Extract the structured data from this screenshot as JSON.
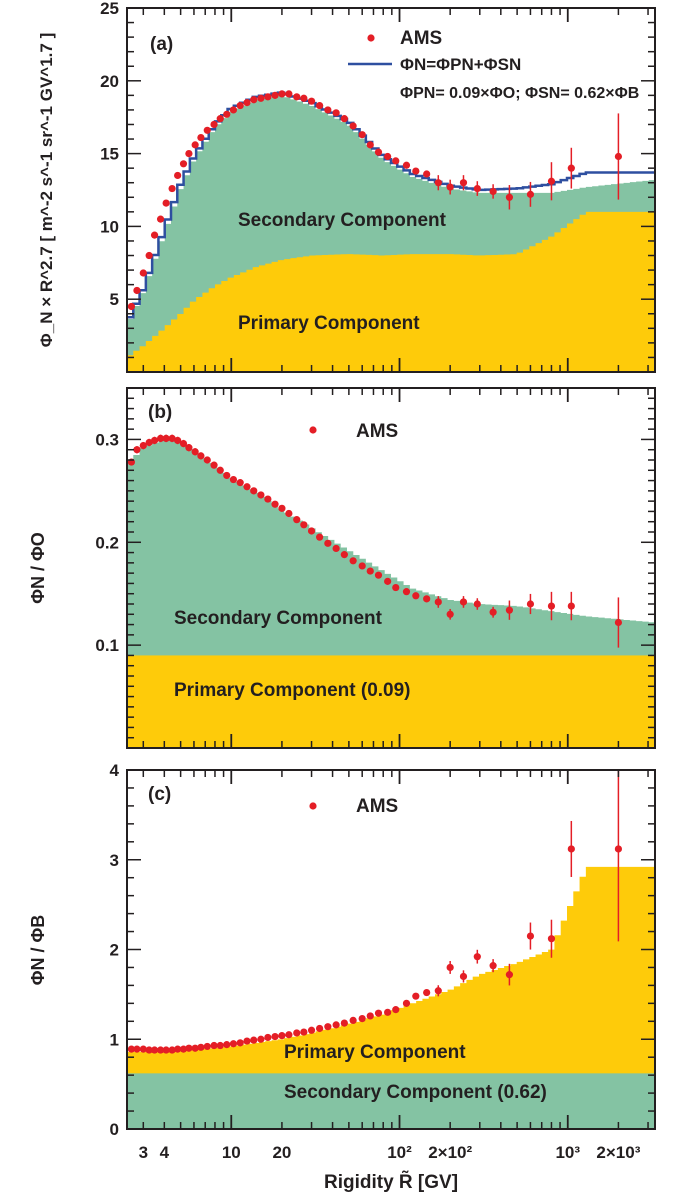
{
  "colors": {
    "secondary_fill": "#84c3a3",
    "primary_fill": "#fecb0a",
    "ams_marker": "#e41e26",
    "model_line": "#2e4fa0",
    "axis": "#231f20"
  },
  "figure": {
    "xlabel": "Rigidity R̃ [GV]",
    "x_range": [
      2.4,
      3300
    ],
    "x_scale": "log"
  },
  "chart_data": [
    {
      "type": "area",
      "panel_label": "(a)",
      "ylabel": "Φ_N × R^2.7 [ m^-2 s^-1 sr^-1 GV^1.7 ]",
      "ylim": [
        0,
        25
      ],
      "y_ticks": [
        5,
        10,
        15,
        20,
        25
      ],
      "legend": {
        "ams": "AMS",
        "line": "ΦN=ΦPN+ΦSN",
        "line2": "ΦPN= 0.09×ΦO; ΦSN= 0.62×ΦB"
      },
      "annotations": [
        "Secondary Component",
        "Primary Component"
      ],
      "series": [
        {
          "name": "Secondary Component",
          "x": [
            2.4,
            3,
            4,
            5,
            6,
            8,
            10,
            14,
            20,
            30,
            50,
            80,
            120,
            200,
            300,
            500,
            800,
            1300,
            3300
          ],
          "values": [
            3.2,
            5.5,
            9.5,
            12.6,
            14.6,
            16.8,
            17.9,
            18.7,
            19.0,
            18.3,
            17.0,
            14.6,
            13.4,
            12.6,
            12.3,
            12.3,
            12.3,
            12.7,
            13.2
          ]
        },
        {
          "name": "Primary Component",
          "x": [
            2.4,
            3,
            4,
            5,
            6,
            8,
            10,
            14,
            20,
            30,
            50,
            80,
            120,
            200,
            300,
            500,
            800,
            1300,
            3300
          ],
          "values": [
            1.0,
            1.8,
            3.0,
            4.0,
            4.9,
            5.9,
            6.5,
            7.2,
            7.7,
            8.0,
            8.1,
            8.0,
            8.1,
            8.1,
            8.0,
            8.1,
            9.3,
            11.0,
            11.0
          ]
        },
        {
          "name": "ΦN=ΦPN+ΦSN",
          "x": [
            2.4,
            3,
            4,
            5,
            6,
            8,
            10,
            14,
            20,
            30,
            50,
            80,
            120,
            200,
            300,
            500,
            800,
            1300,
            3300
          ],
          "values": [
            3.3,
            5.7,
            9.8,
            12.9,
            14.8,
            17.0,
            18.1,
            18.9,
            19.2,
            18.5,
            17.2,
            14.8,
            13.6,
            12.8,
            12.5,
            12.6,
            12.9,
            13.7,
            13.7
          ]
        },
        {
          "name": "AMS",
          "x": [
            2.55,
            2.75,
            3.0,
            3.25,
            3.5,
            3.8,
            4.1,
            4.45,
            4.8,
            5.2,
            5.6,
            6.1,
            6.6,
            7.2,
            7.9,
            8.6,
            9.4,
            10.3,
            11.3,
            12.4,
            13.6,
            15.0,
            16.5,
            18.2,
            20.0,
            22.0,
            24.5,
            27.0,
            30.0,
            33.5,
            37.5,
            42.0,
            47.0,
            53.0,
            60.0,
            67.0,
            75.0,
            85.0,
            95.0,
            110,
            125,
            145,
            170,
            200,
            240,
            290,
            360,
            450,
            600,
            800,
            1050,
            2000
          ],
          "values": [
            4.5,
            5.6,
            6.8,
            8.0,
            9.4,
            10.5,
            11.6,
            12.6,
            13.5,
            14.3,
            15.0,
            15.6,
            16.1,
            16.6,
            17.0,
            17.4,
            17.7,
            18.0,
            18.3,
            18.5,
            18.7,
            18.8,
            18.9,
            19.0,
            19.1,
            19.1,
            18.9,
            18.8,
            18.6,
            18.3,
            18.0,
            17.8,
            17.4,
            16.9,
            16.3,
            15.6,
            15.1,
            14.8,
            14.5,
            14.2,
            13.8,
            13.6,
            13.0,
            12.7,
            13.0,
            12.6,
            12.4,
            12.0,
            12.2,
            13.1,
            14.0,
            14.8
          ]
        }
      ]
    },
    {
      "type": "area",
      "panel_label": "(b)",
      "ylabel": "ΦN / ΦO",
      "ylim": [
        0,
        0.35
      ],
      "y_ticks": [
        0.1,
        0.2,
        0.3
      ],
      "legend": {
        "ams": "AMS"
      },
      "annotations": [
        "Secondary Component",
        "Primary Component (0.09)"
      ],
      "series": [
        {
          "name": "Secondary Component",
          "x": [
            2.4,
            3,
            4,
            5,
            6,
            8,
            10,
            14,
            20,
            30,
            50,
            80,
            120,
            200,
            300,
            500,
            800,
            1300,
            3300
          ],
          "values": [
            0.275,
            0.292,
            0.3,
            0.298,
            0.29,
            0.275,
            0.262,
            0.248,
            0.232,
            0.214,
            0.192,
            0.172,
            0.155,
            0.144,
            0.14,
            0.138,
            0.133,
            0.128,
            0.122
          ]
        },
        {
          "name": "Primary Component (0.09)",
          "x": [
            2.4,
            3300
          ],
          "values": [
            0.09,
            0.09
          ]
        },
        {
          "name": "AMS",
          "x": [
            2.55,
            2.75,
            3.0,
            3.25,
            3.5,
            3.8,
            4.1,
            4.45,
            4.8,
            5.2,
            5.6,
            6.1,
            6.6,
            7.2,
            7.9,
            8.6,
            9.4,
            10.3,
            11.3,
            12.4,
            13.6,
            15.0,
            16.5,
            18.2,
            20.0,
            22.0,
            24.5,
            27.0,
            30.0,
            33.5,
            37.5,
            42.0,
            47.0,
            53.0,
            60.0,
            67.0,
            75.0,
            85.0,
            95.0,
            110,
            125,
            145,
            170,
            200,
            240,
            290,
            360,
            450,
            600,
            800,
            1050,
            2000
          ],
          "values": [
            0.278,
            0.29,
            0.294,
            0.297,
            0.299,
            0.301,
            0.301,
            0.301,
            0.299,
            0.296,
            0.292,
            0.288,
            0.284,
            0.28,
            0.275,
            0.27,
            0.265,
            0.261,
            0.258,
            0.254,
            0.25,
            0.246,
            0.242,
            0.237,
            0.233,
            0.228,
            0.222,
            0.217,
            0.211,
            0.205,
            0.199,
            0.194,
            0.188,
            0.182,
            0.177,
            0.172,
            0.168,
            0.162,
            0.156,
            0.152,
            0.148,
            0.145,
            0.142,
            0.13,
            0.142,
            0.14,
            0.132,
            0.134,
            0.14,
            0.138,
            0.138,
            0.122
          ]
        }
      ]
    },
    {
      "type": "area",
      "panel_label": "(c)",
      "ylabel": "ΦN / ΦB",
      "ylim": [
        0,
        4
      ],
      "y_ticks": [
        0,
        1,
        2,
        3,
        4
      ],
      "legend": {
        "ams": "AMS"
      },
      "annotations": [
        "Primary Component",
        "Secondary Component (0.62)"
      ],
      "series": [
        {
          "name": "Primary Component",
          "x": [
            2.4,
            3,
            4,
            5,
            6,
            8,
            10,
            14,
            20,
            30,
            50,
            80,
            120,
            200,
            300,
            500,
            800,
            1300,
            3300
          ],
          "values": [
            0.86,
            0.86,
            0.86,
            0.87,
            0.88,
            0.9,
            0.92,
            0.96,
            1.0,
            1.07,
            1.17,
            1.28,
            1.4,
            1.55,
            1.72,
            1.85,
            2.0,
            2.92,
            2.92
          ]
        },
        {
          "name": "Secondary Component (0.62)",
          "x": [
            2.4,
            3300
          ],
          "values": [
            0.62,
            0.62
          ]
        },
        {
          "name": "AMS",
          "x": [
            2.55,
            2.75,
            3.0,
            3.25,
            3.5,
            3.8,
            4.1,
            4.45,
            4.8,
            5.2,
            5.6,
            6.1,
            6.6,
            7.2,
            7.9,
            8.6,
            9.4,
            10.3,
            11.3,
            12.4,
            13.6,
            15.0,
            16.5,
            18.2,
            20.0,
            22.0,
            24.5,
            27.0,
            30.0,
            33.5,
            37.5,
            42.0,
            47.0,
            53.0,
            60.0,
            67.0,
            75.0,
            85.0,
            95.0,
            110,
            125,
            145,
            170,
            200,
            240,
            290,
            360,
            450,
            600,
            800,
            1050,
            2000
          ],
          "values": [
            0.89,
            0.89,
            0.89,
            0.88,
            0.88,
            0.88,
            0.88,
            0.88,
            0.89,
            0.89,
            0.9,
            0.9,
            0.91,
            0.92,
            0.93,
            0.93,
            0.94,
            0.95,
            0.96,
            0.98,
            0.99,
            1.0,
            1.02,
            1.03,
            1.04,
            1.05,
            1.07,
            1.08,
            1.1,
            1.12,
            1.14,
            1.16,
            1.18,
            1.21,
            1.23,
            1.26,
            1.29,
            1.3,
            1.33,
            1.4,
            1.48,
            1.52,
            1.54,
            1.8,
            1.7,
            1.92,
            1.82,
            1.72,
            2.15,
            2.12,
            3.12,
            3.12
          ]
        }
      ]
    }
  ]
}
